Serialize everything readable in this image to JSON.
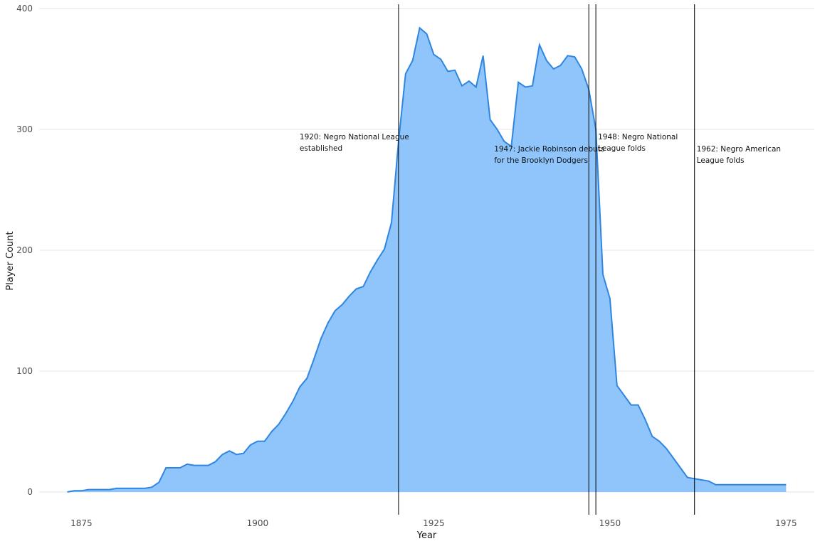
{
  "chart_data": {
    "type": "area",
    "xlabel": "Year",
    "ylabel": "Player Count",
    "xlim": [
      1869,
      1979
    ],
    "ylim": [
      0,
      400
    ],
    "x_ticks": [
      1875,
      1900,
      1925,
      1950,
      1975
    ],
    "y_ticks": [
      0,
      100,
      200,
      300,
      400
    ],
    "grid": true,
    "colors": {
      "fill": "#8fc5fb",
      "line": "#2f86e0",
      "vline": "#000000"
    },
    "series": [
      {
        "x": [
          1873,
          1874,
          1875,
          1876,
          1877,
          1878,
          1879,
          1880,
          1881,
          1882,
          1883,
          1884,
          1885,
          1886,
          1887,
          1888,
          1889,
          1890,
          1891,
          1892,
          1893,
          1894,
          1895,
          1896,
          1897,
          1898,
          1899,
          1900,
          1901,
          1902,
          1903,
          1904,
          1905,
          1906,
          1907,
          1908,
          1909,
          1910,
          1911,
          1912,
          1913,
          1914,
          1915,
          1916,
          1917,
          1918,
          1919,
          1920,
          1921,
          1922,
          1923,
          1924,
          1925,
          1926,
          1927,
          1928,
          1929,
          1930,
          1931,
          1932,
          1933,
          1934,
          1935,
          1936,
          1937,
          1938,
          1939,
          1940,
          1941,
          1942,
          1943,
          1944,
          1945,
          1946,
          1947,
          1948,
          1949,
          1950,
          1951,
          1952,
          1953,
          1954,
          1955,
          1956,
          1957,
          1958,
          1959,
          1960,
          1961,
          1962,
          1963,
          1964,
          1965,
          1966,
          1967,
          1968,
          1969,
          1970,
          1971,
          1972,
          1973,
          1974,
          1975
        ],
        "y": [
          0,
          1,
          1,
          2,
          2,
          2,
          2,
          3,
          3,
          3,
          3,
          3,
          4,
          8,
          20,
          20,
          20,
          23,
          22,
          22,
          22,
          25,
          31,
          34,
          31,
          32,
          39,
          42,
          42,
          50,
          56,
          65,
          75,
          87,
          94,
          110,
          127,
          140,
          150,
          155,
          162,
          168,
          170,
          182,
          192,
          201,
          223,
          290,
          346,
          357,
          384,
          379,
          362,
          358,
          348,
          349,
          336,
          340,
          335,
          361,
          308,
          300,
          290,
          286,
          339,
          335,
          336,
          370,
          357,
          350,
          353,
          361,
          360,
          350,
          333,
          300,
          180,
          160,
          88,
          80,
          72,
          72,
          60,
          46,
          42,
          36,
          28,
          20,
          12,
          11,
          10,
          9,
          6,
          6,
          6,
          6,
          6,
          6,
          6,
          6,
          6,
          6,
          6
        ]
      }
    ],
    "annotations": [
      {
        "x": 1920,
        "lines": [
          "1920: Negro National League",
          " established"
        ]
      },
      {
        "x": 1947,
        "lines": [
          "1947: Jackie Robinson debuts",
          " for the Brooklyn Dodgers"
        ]
      },
      {
        "x": 1948,
        "lines": [
          "1948: Negro National",
          " League folds"
        ]
      },
      {
        "x": 1962,
        "lines": [
          "1962: Negro American",
          " League folds"
        ]
      }
    ]
  }
}
